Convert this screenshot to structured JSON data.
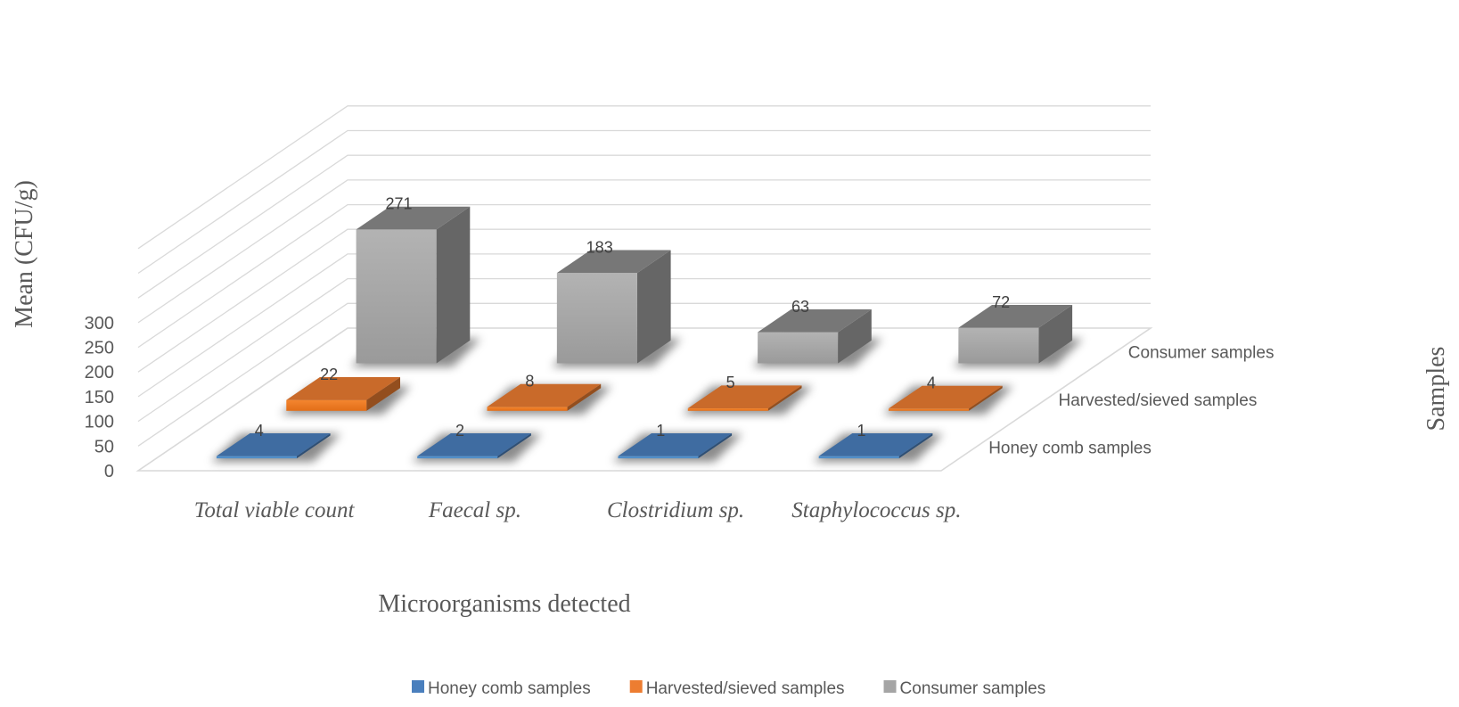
{
  "chart_data": {
    "type": "bar",
    "categories": [
      "Total viable count",
      "Faecal sp.",
      "Clostridium sp.",
      "Staphylococcus sp."
    ],
    "series": [
      {
        "name": "Honey comb samples",
        "values": [
          4,
          2,
          1,
          1
        ],
        "color": "#4a7fbd"
      },
      {
        "name": "Harvested/sieved samples",
        "values": [
          22,
          8,
          5,
          4
        ],
        "color": "#ed7d31"
      },
      {
        "name": "Consumer samples",
        "values": [
          271,
          183,
          63,
          72
        ],
        "color": "#a5a5a5"
      }
    ],
    "ylabel": "Mean (CFU/g)",
    "xlabel": "Microorganisms detected",
    "zlabel": "Samples",
    "yticks": [
      0,
      50,
      100,
      150,
      200,
      250,
      300
    ],
    "ylim": [
      0,
      300
    ],
    "grid": true,
    "legend": "bottom"
  }
}
